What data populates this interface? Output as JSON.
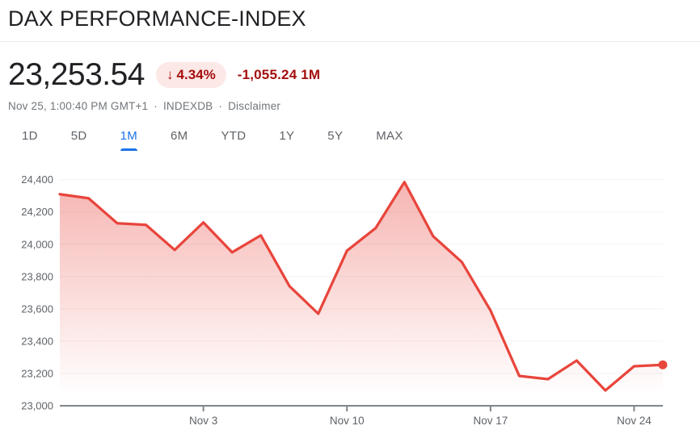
{
  "header": {
    "title": "DAX PERFORMANCE-INDEX"
  },
  "quote": {
    "price": "23,253.54",
    "change": {
      "arrow": "↓",
      "percent": "4.34%",
      "absolute": "-1,055.24 1M"
    },
    "timestamp": "Nov 25, 1:00:40 PM GMT+1",
    "separator": "·",
    "exchange": "INDEXDB",
    "disclaimer": "Disclaimer"
  },
  "tabs": {
    "items": [
      {
        "label": "1D",
        "active": false
      },
      {
        "label": "5D",
        "active": false
      },
      {
        "label": "1M",
        "active": true
      },
      {
        "label": "6M",
        "active": false
      },
      {
        "label": "YTD",
        "active": false
      },
      {
        "label": "1Y",
        "active": false
      },
      {
        "label": "5Y",
        "active": false
      },
      {
        "label": "MAX",
        "active": false
      }
    ]
  },
  "chart_data": {
    "type": "area",
    "series_name": "DAX PERFORMANCE-INDEX 1M",
    "x": [
      "Oct 27",
      "Oct 28",
      "Oct 29",
      "Oct 30",
      "Oct 31",
      "Nov 3",
      "Nov 4",
      "Nov 5",
      "Nov 6",
      "Nov 7",
      "Nov 10",
      "Nov 11",
      "Nov 12",
      "Nov 13",
      "Nov 14",
      "Nov 17",
      "Nov 18",
      "Nov 19",
      "Nov 20",
      "Nov 21",
      "Nov 24",
      "Nov 25"
    ],
    "values": [
      24310,
      24285,
      24130,
      24120,
      23965,
      24135,
      23950,
      24055,
      23740,
      23570,
      23960,
      24100,
      24385,
      24050,
      23890,
      23590,
      23185,
      23165,
      23280,
      23095,
      23245,
      23253.54
    ],
    "last_value": 23253.54,
    "ylim": [
      23000,
      24400
    ],
    "ytick_step": 200,
    "yticks": [
      "23,000",
      "23,200",
      "23,400",
      "23,600",
      "23,800",
      "24,000",
      "24,200",
      "24,400"
    ],
    "xticks": [
      {
        "index": 5,
        "label": "Nov 3"
      },
      {
        "index": 10,
        "label": "Nov 10"
      },
      {
        "index": 15,
        "label": "Nov 17"
      },
      {
        "index": 20,
        "label": "Nov 24"
      }
    ],
    "grid": true,
    "legend": "none",
    "colors": {
      "line": "#e8453c",
      "fill_top": "rgba(232,69,60,0.40)",
      "fill_bottom": "rgba(232,69,60,0)",
      "axis": "#80868b",
      "grid": "#f1f3f4",
      "tick_label": "#5f6368"
    }
  }
}
